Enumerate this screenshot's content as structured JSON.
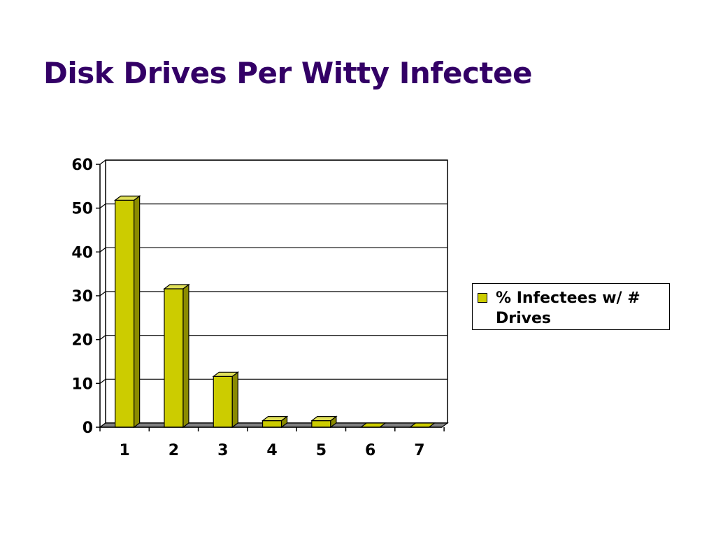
{
  "slide": {
    "title": "Disk Drives Per Witty Infectee"
  },
  "chart_data": {
    "type": "bar",
    "style": "3d-column",
    "categories": [
      "1",
      "2",
      "3",
      "4",
      "5",
      "6",
      "7"
    ],
    "series": [
      {
        "name": "% Infectees w/ # Drives",
        "values": [
          51.8,
          31.6,
          11.6,
          1.5,
          1.5,
          0,
          0
        ]
      }
    ],
    "ylim": [
      0,
      60
    ],
    "yticks": [
      0,
      10,
      20,
      30,
      40,
      50,
      60
    ],
    "grid": true,
    "legend": "right",
    "colors": {
      "bar_front": "#cccc00",
      "bar_side": "#8a8a00",
      "bar_top": "#e0e05a",
      "floor": "#808080",
      "gridline": "#000000"
    }
  }
}
